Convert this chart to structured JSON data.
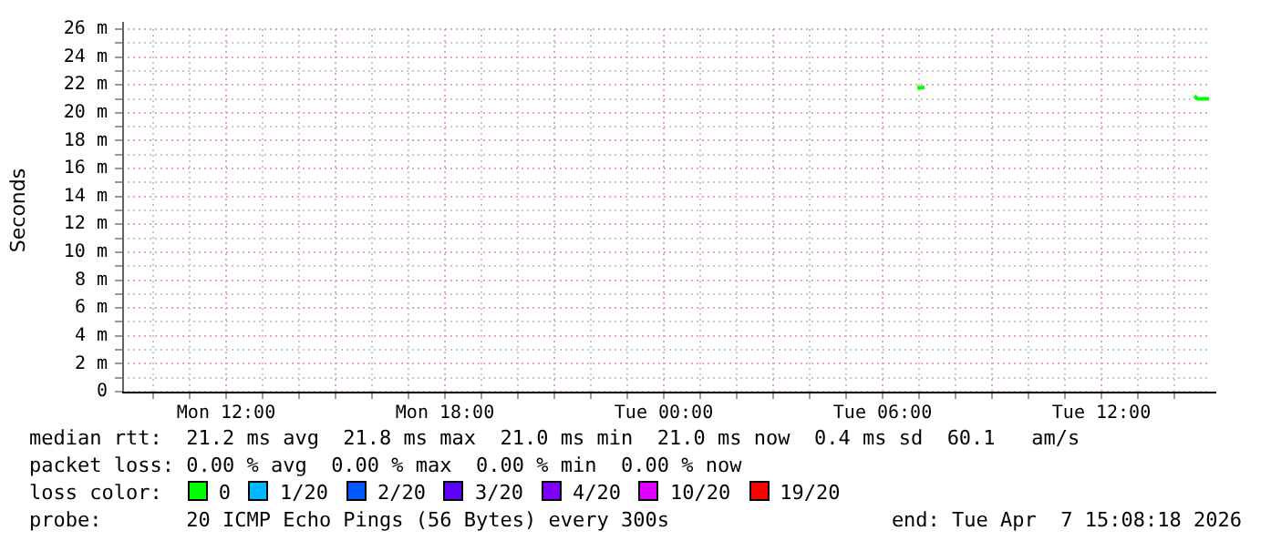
{
  "chart_data": {
    "type": "line",
    "ylabel": "Seconds",
    "legend_title": "loss color:",
    "legend": "bottom",
    "grid": true,
    "line_style": "solid",
    "marker": "none",
    "xlim": [
      "2026-04-06T09:09",
      "2026-04-07T14:57"
    ],
    "xticks": [
      {
        "value": "2026-04-06T10:00",
        "label": null
      },
      {
        "value": "2026-04-06T11:00",
        "label": null
      },
      {
        "value": "2026-04-06T12:00",
        "label": "Mon 12:00"
      },
      {
        "value": "2026-04-06T13:00",
        "label": null
      },
      {
        "value": "2026-04-06T14:00",
        "label": null
      },
      {
        "value": "2026-04-06T15:00",
        "label": null
      },
      {
        "value": "2026-04-06T16:00",
        "label": null
      },
      {
        "value": "2026-04-06T17:00",
        "label": null
      },
      {
        "value": "2026-04-06T18:00",
        "label": "Mon 18:00"
      },
      {
        "value": "2026-04-06T19:00",
        "label": null
      },
      {
        "value": "2026-04-06T20:00",
        "label": null
      },
      {
        "value": "2026-04-06T21:00",
        "label": null
      },
      {
        "value": "2026-04-06T22:00",
        "label": null
      },
      {
        "value": "2026-04-06T23:00",
        "label": null
      },
      {
        "value": "2026-04-07T00:00",
        "label": "Tue 00:00"
      },
      {
        "value": "2026-04-07T01:00",
        "label": null
      },
      {
        "value": "2026-04-07T02:00",
        "label": null
      },
      {
        "value": "2026-04-07T03:00",
        "label": null
      },
      {
        "value": "2026-04-07T04:00",
        "label": null
      },
      {
        "value": "2026-04-07T05:00",
        "label": null
      },
      {
        "value": "2026-04-07T06:00",
        "label": "Tue 06:00"
      },
      {
        "value": "2026-04-07T07:00",
        "label": null
      },
      {
        "value": "2026-04-07T08:00",
        "label": null
      },
      {
        "value": "2026-04-07T09:00",
        "label": null
      },
      {
        "value": "2026-04-07T10:00",
        "label": null
      },
      {
        "value": "2026-04-07T11:00",
        "label": null
      },
      {
        "value": "2026-04-07T12:00",
        "label": "Tue 12:00"
      },
      {
        "value": "2026-04-07T13:00",
        "label": null
      },
      {
        "value": "2026-04-07T14:00",
        "label": null
      }
    ],
    "ylim": [
      0,
      26
    ],
    "yticks": [
      0,
      {
        "value": 1,
        "label": null
      },
      {
        "value": 2,
        "label": "2 m"
      },
      {
        "value": 3,
        "label": null
      },
      {
        "value": 4,
        "label": "4 m"
      },
      {
        "value": 5,
        "label": null
      },
      {
        "value": 6,
        "label": "6 m"
      },
      {
        "value": 7,
        "label": null
      },
      {
        "value": 8,
        "label": "8 m"
      },
      {
        "value": 9,
        "label": null
      },
      {
        "value": 10,
        "label": "10 m"
      },
      {
        "value": 11,
        "label": null
      },
      {
        "value": 12,
        "label": "12 m"
      },
      {
        "value": 13,
        "label": null
      },
      {
        "value": 14,
        "label": "14 m"
      },
      {
        "value": 15,
        "label": null
      },
      {
        "value": 16,
        "label": "16 m"
      },
      {
        "value": 17,
        "label": null
      },
      {
        "value": 18,
        "label": "18 m"
      },
      {
        "value": 19,
        "label": null
      },
      {
        "value": 20,
        "label": "20 m"
      },
      {
        "value": 21,
        "label": null
      },
      {
        "value": 22,
        "label": "22 m"
      },
      {
        "value": 23,
        "label": null
      },
      {
        "value": 24,
        "label": "24 m"
      },
      {
        "value": 25,
        "label": null
      },
      {
        "value": 26,
        "label": "26 m"
      }
    ],
    "series": [
      {
        "name": "0",
        "color": "#00ff00",
        "x": [
          "2026-04-07T06:57",
          "2026-04-07T07:09",
          "2026-04-07T11:00",
          "2026-04-07T14:33",
          "2026-04-07T14:39",
          "2026-04-07T14:57"
        ],
        "values": [
          21.8,
          21.8,
          null,
          21.2,
          21.0,
          21.0
        ]
      },
      {
        "name": "1/20",
        "color": "#00b8ff"
      },
      {
        "name": "2/20",
        "color": "#0059ff"
      },
      {
        "name": "3/20",
        "color": "#5e00ff"
      },
      {
        "name": "4/20",
        "color": "#7e00ff"
      },
      {
        "name": "10/20",
        "color": "#dd00ff"
      },
      {
        "name": "19/20",
        "color": "#ff0000"
      }
    ],
    "annotations": [
      "median rtt:  21.2 ms avg  21.8 ms max  21.0 ms min  21.0 ms now  0.4 ms sd  60.1   am/s",
      "packet loss: 0.00 % avg  0.00 % max  0.00 % min  0.00 % now",
      "probe:       20 ICMP Echo Pings (56 Bytes) every 300s",
      "end: Tue Apr  7 15:08:18 2026"
    ]
  }
}
